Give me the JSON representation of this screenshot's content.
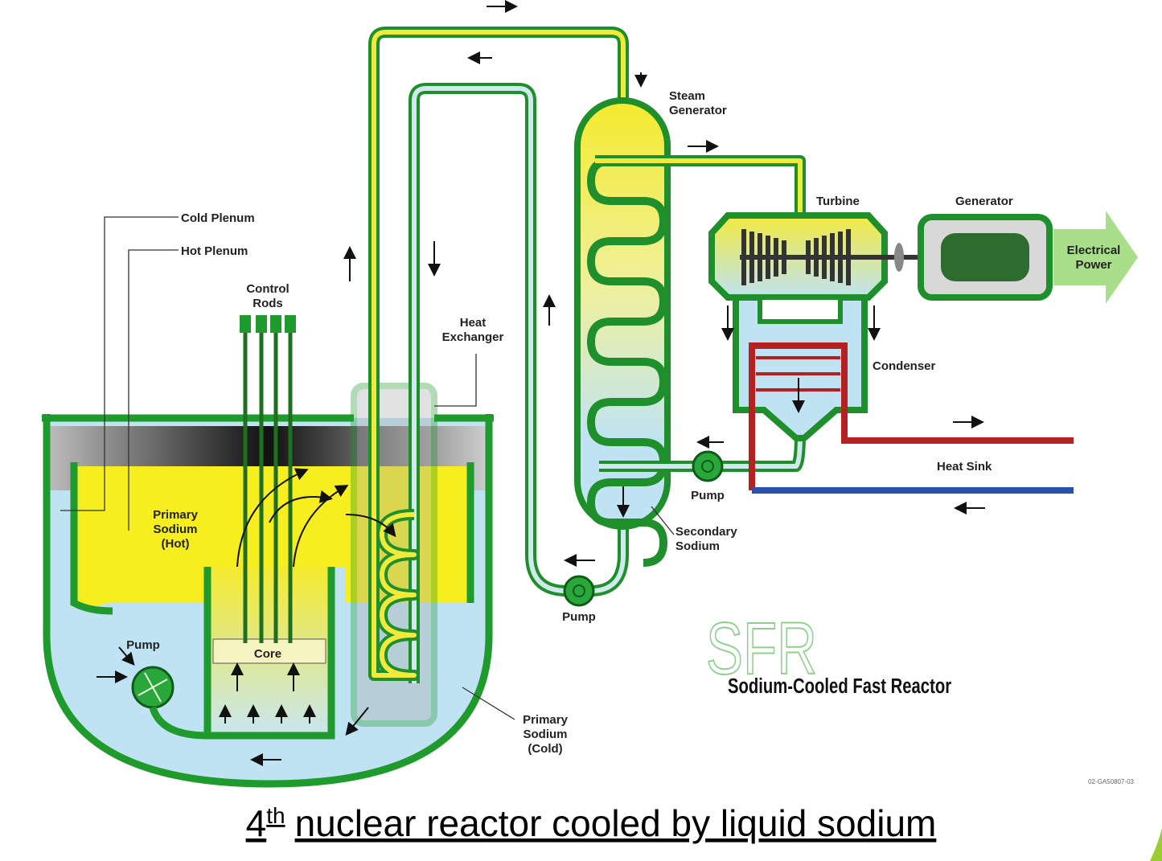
{
  "labels": {
    "cold_plenum": [
      "Cold Plenum"
    ],
    "hot_plenum": [
      "Hot Plenum"
    ],
    "control_rods": [
      "Control",
      "Rods"
    ],
    "heat_exchanger": [
      "Heat",
      "Exchanger"
    ],
    "steam_generator": [
      "Steam",
      "Generator"
    ],
    "turbine": [
      "Turbine"
    ],
    "generator": [
      "Generator"
    ],
    "electrical_power": [
      "Electrical",
      "Power"
    ],
    "condenser": [
      "Condenser"
    ],
    "heat_sink": [
      "Heat Sink"
    ],
    "pump_secondary": [
      "Pump"
    ],
    "pump_loop": [
      "Pump"
    ],
    "pump_primary": [
      "Pump"
    ],
    "secondary_sodium": [
      "Secondary",
      "Sodium"
    ],
    "primary_sodium_hot": [
      "Primary",
      "Sodium",
      "(Hot)"
    ],
    "primary_sodium_cold": [
      "Primary",
      "Sodium",
      "(Cold)"
    ],
    "core": [
      "Core"
    ]
  },
  "logo": {
    "acronym": "SFR",
    "name": "Sodium-Cooled Fast Reactor"
  },
  "drawing_id": "02-GA50807-03",
  "caption": {
    "number": "4",
    "superscript": "th",
    "text": "nuclear reactor cooled by liquid sodium"
  }
}
